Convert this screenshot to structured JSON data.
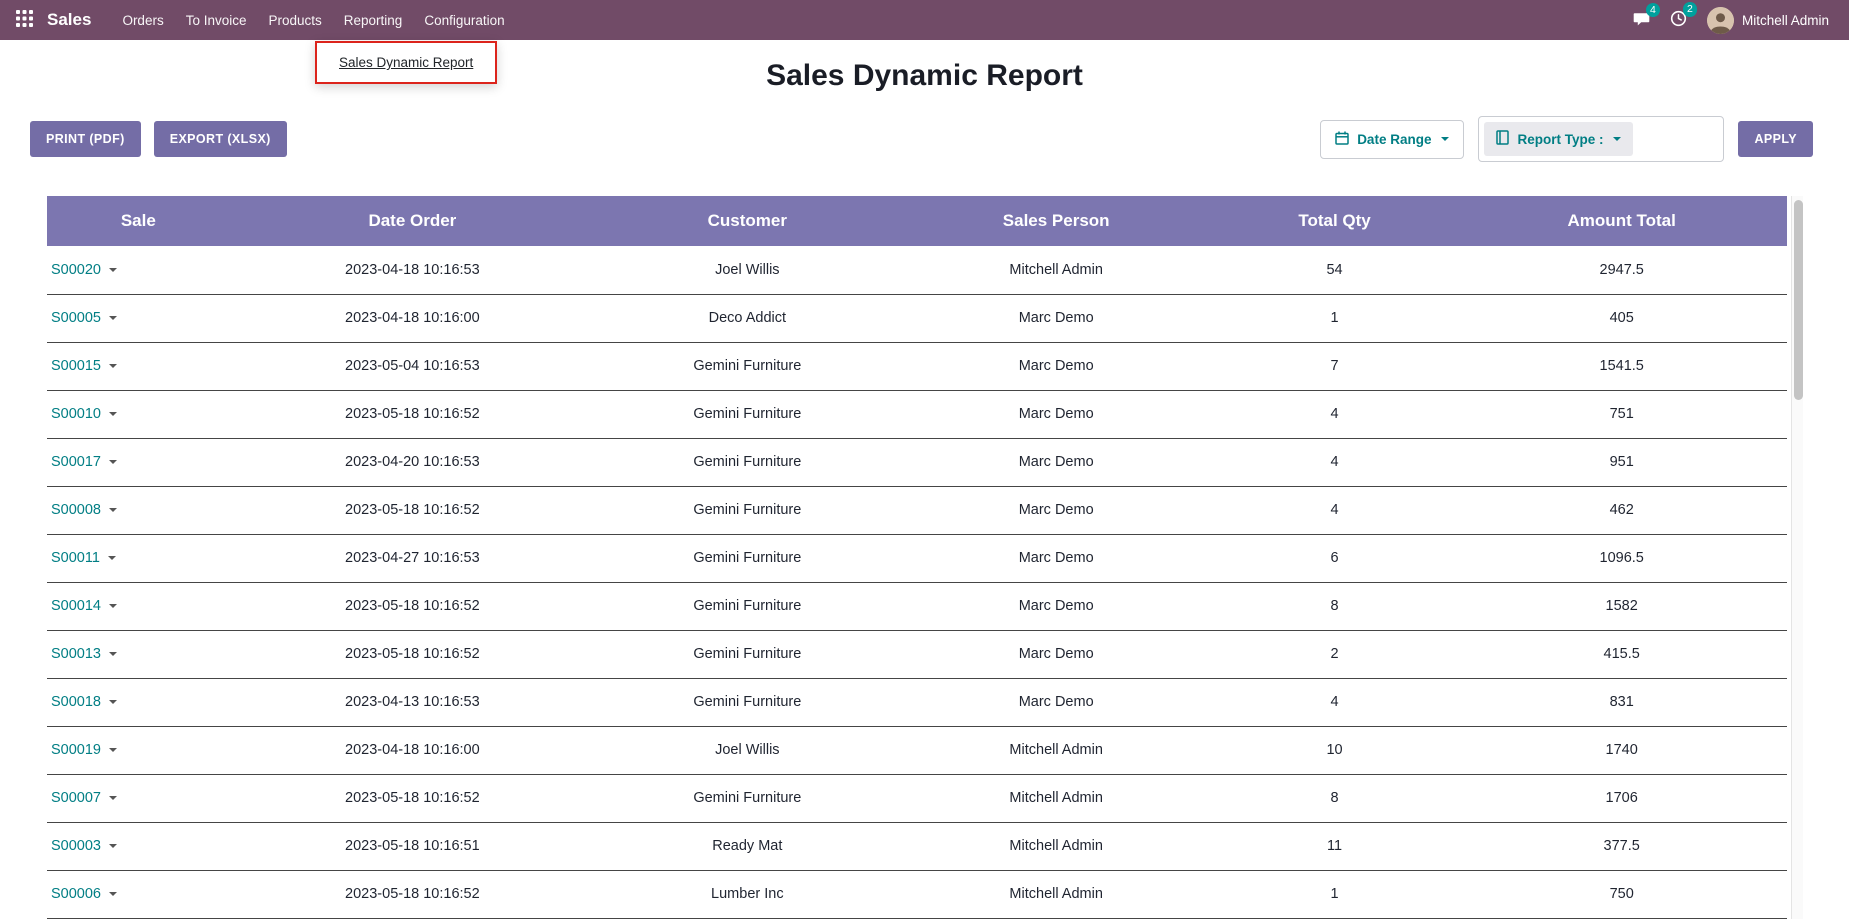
{
  "nav": {
    "brand": "Sales",
    "items": [
      {
        "label": "Orders"
      },
      {
        "label": "To Invoice"
      },
      {
        "label": "Products"
      },
      {
        "label": "Reporting"
      },
      {
        "label": "Configuration"
      }
    ],
    "dropdown": {
      "label": "Sales Dynamic Report"
    },
    "messages_badge": "4",
    "activities_badge": "2",
    "user": "Mitchell Admin"
  },
  "page": {
    "title": "Sales Dynamic Report"
  },
  "toolbar": {
    "print_label": "PRINT (PDF)",
    "export_label": "EXPORT (XLSX)",
    "date_range_label": "Date Range",
    "report_type_label": "Report Type :",
    "apply_label": "APPLY"
  },
  "icons": {
    "apps-grid": "grid-3x3-dots",
    "messages": "speech-bubble",
    "activities": "clock",
    "date-range": "calendar",
    "report-type": "book",
    "caret": "triangle-down"
  },
  "colors": {
    "navbar": "#714B67",
    "button_purple": "#746da6",
    "table_header_purple": "#7c76b0",
    "link_teal": "#017e84",
    "badge_teal": "#00A09D",
    "annotation_red": "#dc241c"
  },
  "table": {
    "headers": [
      "Sale",
      "Date Order",
      "Customer",
      "Sales Person",
      "Total Qty",
      "Amount Total"
    ],
    "rows": [
      {
        "sale": "S00020",
        "date": "2023-04-18 10:16:53",
        "customer": "Joel Willis",
        "salesperson": "Mitchell Admin",
        "qty": "54",
        "amount": "2947.5"
      },
      {
        "sale": "S00005",
        "date": "2023-04-18 10:16:00",
        "customer": "Deco Addict",
        "salesperson": "Marc Demo",
        "qty": "1",
        "amount": "405"
      },
      {
        "sale": "S00015",
        "date": "2023-05-04 10:16:53",
        "customer": "Gemini Furniture",
        "salesperson": "Marc Demo",
        "qty": "7",
        "amount": "1541.5"
      },
      {
        "sale": "S00010",
        "date": "2023-05-18 10:16:52",
        "customer": "Gemini Furniture",
        "salesperson": "Marc Demo",
        "qty": "4",
        "amount": "751"
      },
      {
        "sale": "S00017",
        "date": "2023-04-20 10:16:53",
        "customer": "Gemini Furniture",
        "salesperson": "Marc Demo",
        "qty": "4",
        "amount": "951"
      },
      {
        "sale": "S00008",
        "date": "2023-05-18 10:16:52",
        "customer": "Gemini Furniture",
        "salesperson": "Marc Demo",
        "qty": "4",
        "amount": "462"
      },
      {
        "sale": "S00011",
        "date": "2023-04-27 10:16:53",
        "customer": "Gemini Furniture",
        "salesperson": "Marc Demo",
        "qty": "6",
        "amount": "1096.5"
      },
      {
        "sale": "S00014",
        "date": "2023-05-18 10:16:52",
        "customer": "Gemini Furniture",
        "salesperson": "Marc Demo",
        "qty": "8",
        "amount": "1582"
      },
      {
        "sale": "S00013",
        "date": "2023-05-18 10:16:52",
        "customer": "Gemini Furniture",
        "salesperson": "Marc Demo",
        "qty": "2",
        "amount": "415.5"
      },
      {
        "sale": "S00018",
        "date": "2023-04-13 10:16:53",
        "customer": "Gemini Furniture",
        "salesperson": "Marc Demo",
        "qty": "4",
        "amount": "831"
      },
      {
        "sale": "S00019",
        "date": "2023-04-18 10:16:00",
        "customer": "Joel Willis",
        "salesperson": "Mitchell Admin",
        "qty": "10",
        "amount": "1740"
      },
      {
        "sale": "S00007",
        "date": "2023-05-18 10:16:52",
        "customer": "Gemini Furniture",
        "salesperson": "Mitchell Admin",
        "qty": "8",
        "amount": "1706"
      },
      {
        "sale": "S00003",
        "date": "2023-05-18 10:16:51",
        "customer": "Ready Mat",
        "salesperson": "Mitchell Admin",
        "qty": "11",
        "amount": "377.5"
      },
      {
        "sale": "S00006",
        "date": "2023-05-18 10:16:52",
        "customer": "Lumber Inc",
        "salesperson": "Mitchell Admin",
        "qty": "1",
        "amount": "750"
      }
    ]
  }
}
